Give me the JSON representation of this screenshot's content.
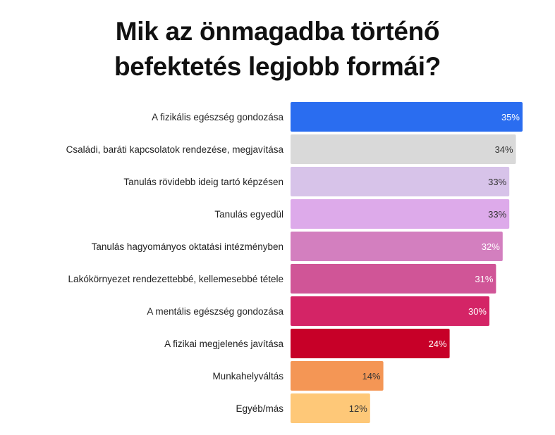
{
  "chart_data": {
    "type": "bar",
    "orientation": "horizontal",
    "title_lines": [
      "Mik az önmagadba történő",
      "befektetés legjobb formái?"
    ],
    "categories": [
      "A fizikális egészség gondozása",
      "Családi, baráti kapcsolatok rendezése, megjavítása",
      "Tanulás rövidebb ideig tartó képzésen",
      "Tanulás egyedül",
      "Tanulás hagyományos oktatási intézményben",
      "Lakókörnyezet rendezettebbé, kellemesebbé tétele",
      "A mentális egészség gondozása",
      "A fizikai megjelenés javítása",
      "Munkahelyváltás",
      "Egyéb/más"
    ],
    "values": [
      35,
      34,
      33,
      33,
      32,
      31,
      30,
      24,
      14,
      12
    ],
    "value_labels": [
      "35%",
      "34%",
      "33%",
      "33%",
      "32%",
      "31%",
      "30%",
      "24%",
      "14%",
      "12%"
    ],
    "colors": [
      "#2a6df0",
      "#d9d9d9",
      "#d7c3e9",
      "#ddaaea",
      "#d37fbf",
      "#d05597",
      "#d42466",
      "#c70028",
      "#f49655",
      "#fec878"
    ],
    "label_colors": [
      "#ffffff",
      "#333333",
      "#333333",
      "#333333",
      "#ffffff",
      "#ffffff",
      "#ffffff",
      "#ffffff",
      "#333333",
      "#333333"
    ],
    "xlim": [
      0,
      35
    ],
    "grid": false,
    "legend": "none"
  }
}
